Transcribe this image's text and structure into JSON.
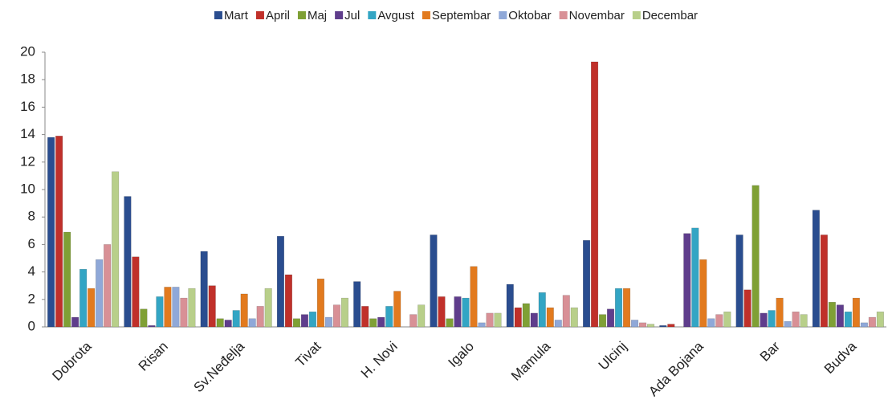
{
  "chart_data": {
    "type": "bar",
    "categories": [
      "Dobrota",
      "Risan",
      "Sv.Neđelja",
      "Tivat",
      "H. Novi",
      "Igalo",
      "Mamula",
      "Ulcinj",
      "Ada Bojana",
      "Bar",
      "Budva"
    ],
    "series": [
      {
        "name": "Mart",
        "color": "#2a4d8f",
        "values": [
          13.8,
          9.5,
          5.5,
          6.6,
          3.3,
          6.7,
          3.1,
          6.3,
          0.1,
          6.7,
          8.5
        ]
      },
      {
        "name": "April",
        "color": "#c0302a",
        "values": [
          13.9,
          5.1,
          3.0,
          3.8,
          1.5,
          2.2,
          1.4,
          19.3,
          0.2,
          2.7,
          6.7
        ]
      },
      {
        "name": "Maj",
        "color": "#7fa035",
        "values": [
          6.9,
          1.3,
          0.6,
          0.6,
          0.6,
          0.6,
          1.7,
          0.9,
          0,
          10.3,
          1.8
        ]
      },
      {
        "name": "Jul",
        "color": "#5f3d8c",
        "values": [
          0.7,
          0.1,
          0.5,
          0.9,
          0.7,
          2.2,
          1.0,
          1.3,
          6.8,
          1.0,
          1.6
        ]
      },
      {
        "name": "Avgust",
        "color": "#33a5c4",
        "values": [
          4.2,
          2.2,
          1.2,
          1.1,
          1.5,
          2.1,
          2.5,
          2.8,
          7.2,
          1.2,
          1.1
        ]
      },
      {
        "name": "Septembar",
        "color": "#e27a1e",
        "values": [
          2.8,
          2.9,
          2.4,
          3.5,
          2.6,
          4.4,
          1.4,
          2.8,
          4.9,
          2.1,
          2.1
        ]
      },
      {
        "name": "Oktobar",
        "color": "#8fa8d8",
        "values": [
          4.9,
          2.9,
          0.6,
          0.7,
          0,
          0.3,
          0.5,
          0.5,
          0.6,
          0.4,
          0.3
        ]
      },
      {
        "name": "Novembar",
        "color": "#d89096",
        "values": [
          6.0,
          2.1,
          1.5,
          1.6,
          0.9,
          1.0,
          2.3,
          0.3,
          0.9,
          1.1,
          0.7
        ]
      },
      {
        "name": "Decembar",
        "color": "#b8cf8a",
        "values": [
          11.3,
          2.8,
          2.8,
          2.1,
          1.6,
          1.0,
          1.4,
          0.2,
          1.1,
          0.9,
          1.1
        ]
      }
    ],
    "ylim": [
      0,
      20
    ],
    "yticks": [
      0,
      2,
      4,
      6,
      8,
      10,
      12,
      14,
      16,
      18,
      20
    ],
    "grid": false,
    "legend": "top"
  }
}
